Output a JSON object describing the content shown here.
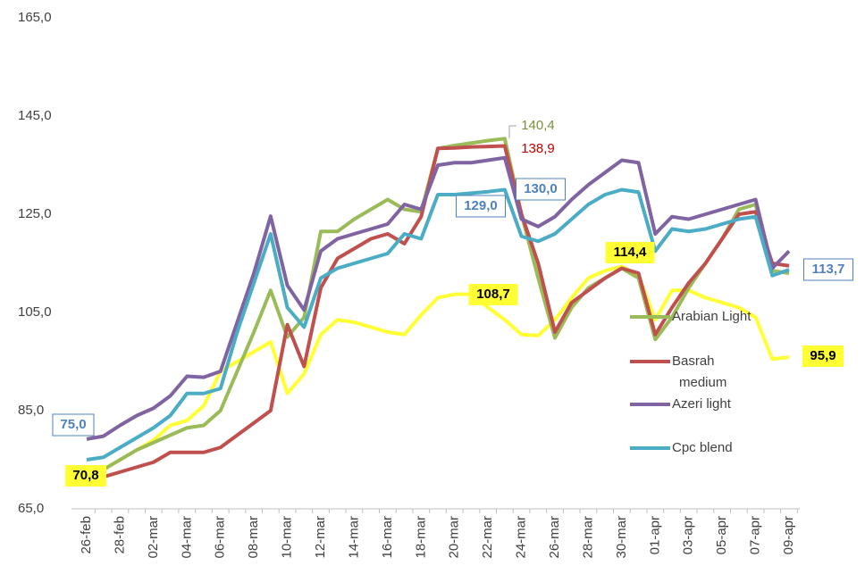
{
  "chart_data": {
    "type": "line",
    "categories": [
      "26-feb",
      null,
      "28-feb",
      null,
      "02-mar",
      null,
      "04-mar",
      null,
      "06-mar",
      null,
      "08-mar",
      null,
      "10-mar",
      null,
      "12-mar",
      null,
      "14-mar",
      null,
      "16-mar",
      null,
      "18-mar",
      null,
      "20-mar",
      null,
      "22-mar",
      null,
      "24-mar",
      null,
      "26-mar",
      null,
      "28-mar",
      null,
      "30-mar",
      null,
      "01-apr",
      null,
      "03-apr",
      null,
      "05-apr",
      null,
      "07-apr",
      null,
      "09-apr"
    ],
    "ylim": [
      65,
      165
    ],
    "yticks": [
      {
        "value": 65,
        "label": "65,0"
      },
      {
        "value": 85,
        "label": "85,0"
      },
      {
        "value": 105,
        "label": "105,0"
      },
      {
        "value": 125,
        "label": "125,0"
      },
      {
        "value": 145,
        "label": "145,0"
      },
      {
        "value": 165,
        "label": "165,0"
      }
    ],
    "series": [
      {
        "name": "Arabian Light",
        "color": "#9bbb59",
        "values": [
          72,
          73,
          75,
          77,
          78.5,
          80,
          81.5,
          82,
          85,
          93,
          101,
          109.5,
          100,
          104,
          121.5,
          121.5,
          124,
          126,
          128,
          126,
          125.5,
          138.4,
          139,
          139.5,
          140,
          140.4,
          125,
          112,
          99.8,
          106,
          110,
          112,
          114,
          112,
          99.5,
          104,
          110,
          115,
          120,
          126,
          127,
          113.5,
          113
        ],
        "value_labels": [
          null,
          null,
          null,
          null,
          null,
          null,
          null,
          null,
          null,
          null,
          null,
          null,
          null,
          null,
          null,
          null,
          null,
          null,
          null,
          null,
          null,
          null,
          null,
          null,
          null,
          "140,4",
          null,
          null,
          null,
          null,
          null,
          null,
          null,
          null,
          null,
          null,
          null,
          null,
          null,
          null,
          null,
          null,
          null
        ]
      },
      {
        "name": "Basrah medium",
        "color": "#c0504d",
        "values": [
          70.8,
          71.5,
          72.5,
          73.5,
          74.5,
          76.5,
          76.5,
          76.5,
          77.5,
          80,
          82.5,
          85,
          102.5,
          94,
          110,
          116,
          118,
          120,
          121,
          119,
          124.5,
          138.4,
          138.5,
          138.7,
          138.8,
          138.9,
          125,
          115,
          101,
          107,
          109.5,
          112,
          114,
          113,
          100.5,
          106,
          111,
          115,
          120,
          125,
          125.5,
          115,
          114.5
        ],
        "value_labels": [
          null,
          null,
          null,
          null,
          null,
          null,
          null,
          null,
          null,
          null,
          null,
          null,
          null,
          null,
          null,
          null,
          null,
          null,
          null,
          null,
          null,
          null,
          null,
          null,
          null,
          "138,9",
          null,
          null,
          null,
          null,
          null,
          null,
          null,
          null,
          null,
          null,
          null,
          null,
          null,
          null,
          null,
          null,
          null
        ]
      },
      {
        "name": "Azeri light",
        "color": "#8064a2",
        "values": [
          79.2,
          79.8,
          82,
          84,
          85.5,
          88,
          92,
          91.8,
          93,
          103,
          113,
          124.6,
          110.5,
          105.5,
          117.5,
          120,
          121,
          122,
          123,
          127,
          126,
          135,
          135.5,
          135.5,
          136,
          136.5,
          124,
          122.5,
          124.5,
          128,
          131,
          133.5,
          136,
          135.5,
          121,
          124.5,
          124,
          125,
          126,
          127,
          128,
          114,
          117.5
        ]
      },
      {
        "name": "Cpc blend",
        "color": "#4bacc6",
        "values": [
          75,
          75.5,
          77.5,
          79.5,
          81.5,
          84,
          88.5,
          88.5,
          89.5,
          101,
          111,
          121,
          106,
          102,
          112,
          114,
          115,
          116,
          117,
          121,
          120,
          129,
          129,
          129.3,
          129.6,
          130,
          120.5,
          119.5,
          121,
          124,
          127,
          129,
          130,
          129.5,
          117.5,
          122,
          121.5,
          122,
          123,
          124,
          124.5,
          112.5,
          113.7
        ],
        "value_labels": [
          "75,0",
          null,
          null,
          null,
          null,
          null,
          null,
          null,
          null,
          null,
          null,
          null,
          null,
          null,
          null,
          null,
          null,
          null,
          null,
          null,
          null,
          null,
          "129,0",
          null,
          null,
          "130,0",
          null,
          null,
          null,
          null,
          null,
          null,
          null,
          null,
          null,
          null,
          null,
          null,
          null,
          null,
          null,
          null,
          "113,7"
        ]
      },
      {
        "color": "#ffff33",
        "values": [
          70.8,
          73,
          75,
          77,
          79,
          82,
          83,
          86,
          93,
          95,
          97,
          99,
          88.5,
          92.5,
          100.5,
          103.5,
          103,
          102,
          101,
          100.5,
          104.5,
          108,
          108.7,
          108.7,
          106,
          103.5,
          100.5,
          100.3,
          103.5,
          108,
          112,
          113.5,
          114.4,
          112.5,
          103.5,
          109.5,
          109.5,
          108,
          107,
          106,
          104,
          95.5,
          95.9
        ],
        "value_labels": [
          "70,8",
          null,
          null,
          null,
          null,
          null,
          null,
          null,
          null,
          null,
          null,
          null,
          null,
          null,
          null,
          null,
          null,
          null,
          null,
          null,
          null,
          null,
          "108,7",
          null,
          null,
          null,
          null,
          null,
          null,
          null,
          null,
          null,
          "114,4",
          null,
          null,
          null,
          null,
          null,
          null,
          null,
          null,
          null,
          "95,9"
        ]
      }
    ]
  }
}
